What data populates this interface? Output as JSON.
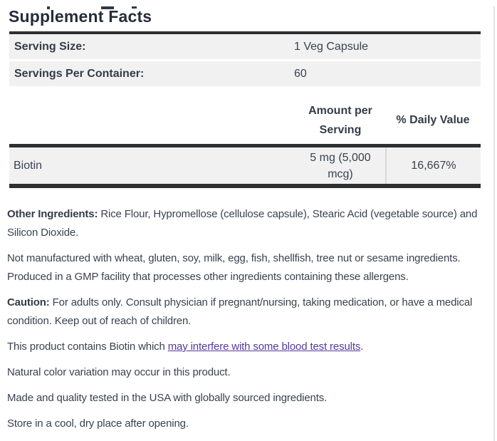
{
  "title": "Supplement Facts",
  "colors": {
    "heavy_border": "#2e2f31",
    "row_background": "#f1f1f2",
    "body_text": "#3a424f",
    "link_purple": "#56379e",
    "column_divider": "#d7d7d9"
  },
  "serving_table": {
    "rows": [
      {
        "label": "Serving Size:",
        "value": "1 Veg Capsule"
      },
      {
        "label": "Servings Per Container:",
        "value": "60"
      }
    ]
  },
  "facts_table": {
    "amount_header": [
      "Amount per",
      "Serving"
    ],
    "daily_value_header": "% Daily Value",
    "rows": [
      {
        "name": "Biotin",
        "amount": [
          "5 mg (5,000",
          "mcg)"
        ],
        "daily_value": "16,667%"
      }
    ]
  },
  "paragraphs": {
    "other_ingredients": {
      "bold": "Other Ingredients:",
      "lines": [
        " Rice Flour, Hypromellose (cellulose capsule), Stearic Acid (vegetable source) and",
        "Silicon Dioxide."
      ]
    },
    "allergens": {
      "lines": [
        "Not manufactured with wheat, gluten, soy, milk, egg, fish, shellfish, tree nut or sesame ingredients.",
        "Produced in a GMP facility that processes other ingredients containing these allergens."
      ]
    },
    "caution": {
      "bold": "Caution:",
      "lines": [
        " For adults only. Consult physician if pregnant/nursing, taking medication, or have a medical",
        "condition. Keep out of reach of children."
      ]
    },
    "biotin_notice": {
      "prefix": "This product contains Biotin which ",
      "link_text": "may interfere with some blood test results",
      "suffix": "."
    },
    "color_variation": "Natural color variation may occur in this product.",
    "made_in": "Made and quality tested in the USA with globally sourced ingredients.",
    "storage": "Store in a cool, dry place after opening."
  }
}
